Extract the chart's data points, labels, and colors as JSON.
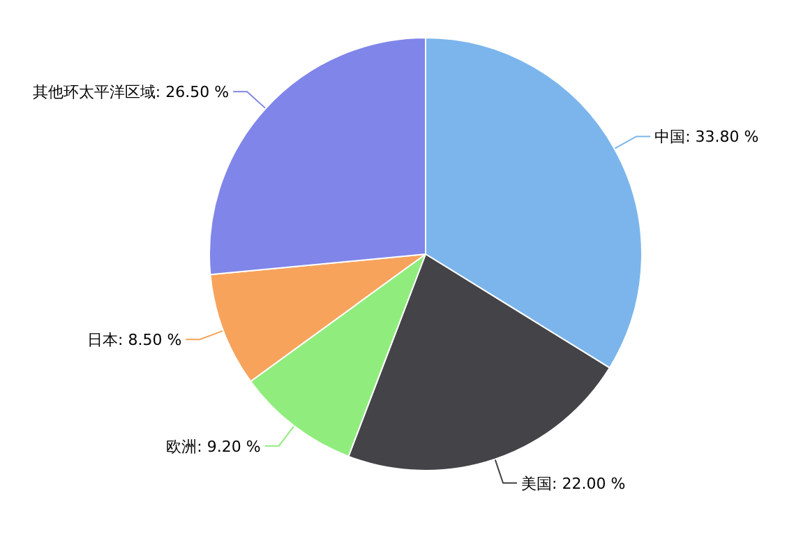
{
  "chart_data": {
    "type": "pie",
    "categories": [
      "中国",
      "美国",
      "欧洲",
      "日本",
      "其他环太平洋区域"
    ],
    "values": [
      33.8,
      22.0,
      9.2,
      8.5,
      26.5
    ],
    "colors": [
      "#7cb5ec",
      "#434348",
      "#90ed7d",
      "#f7a35c",
      "#8085e9"
    ],
    "value_labels": [
      "33.80 %",
      "22.00 %",
      "9.20 %",
      "8.50 %",
      "26.50 %"
    ]
  }
}
